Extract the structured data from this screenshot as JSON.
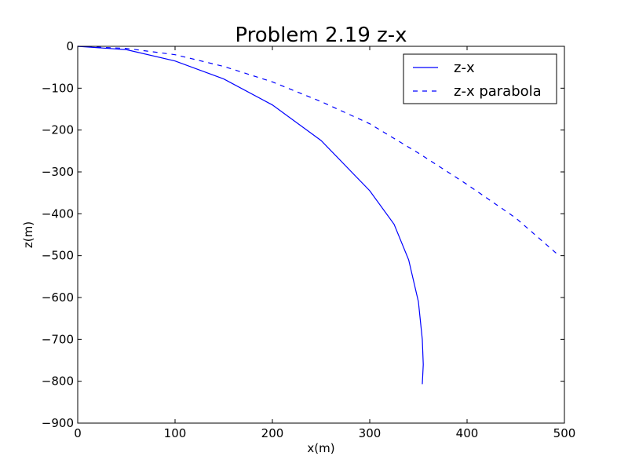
{
  "chart_data": {
    "type": "line",
    "title": "Problem 2.19 z-x",
    "xlabel": "x(m)",
    "ylabel": "z(m)",
    "xlim": [
      0,
      500
    ],
    "ylim": [
      -900,
      0
    ],
    "xticks": [
      0,
      100,
      200,
      300,
      400,
      500
    ],
    "yticks": [
      0,
      -100,
      -200,
      -300,
      -400,
      -500,
      -600,
      -700,
      -800,
      -900
    ],
    "xtick_labels": [
      "0",
      "100",
      "200",
      "300",
      "400",
      "500"
    ],
    "ytick_labels": [
      "0",
      "−100",
      "−200",
      "−300",
      "−400",
      "−500",
      "−600",
      "−700",
      "−800",
      "−900"
    ],
    "grid": false,
    "legend_position": "top-right",
    "series": [
      {
        "name": "z-x",
        "style": "solid",
        "color": "#0000ff",
        "x": [
          0,
          50,
          100,
          150,
          200,
          250,
          300,
          325,
          340,
          350,
          354,
          355,
          354
        ],
        "y": [
          0,
          -8,
          -35,
          -78,
          -140,
          -225,
          -345,
          -425,
          -510,
          -610,
          -700,
          -760,
          -807
        ]
      },
      {
        "name": "z-x parabola",
        "style": "dashed",
        "color": "#0000ff",
        "x": [
          0,
          50,
          100,
          150,
          200,
          250,
          300,
          350,
          400,
          450,
          492
        ],
        "y": [
          0,
          -5,
          -20,
          -48,
          -85,
          -132,
          -185,
          -255,
          -330,
          -410,
          -495
        ]
      }
    ]
  }
}
